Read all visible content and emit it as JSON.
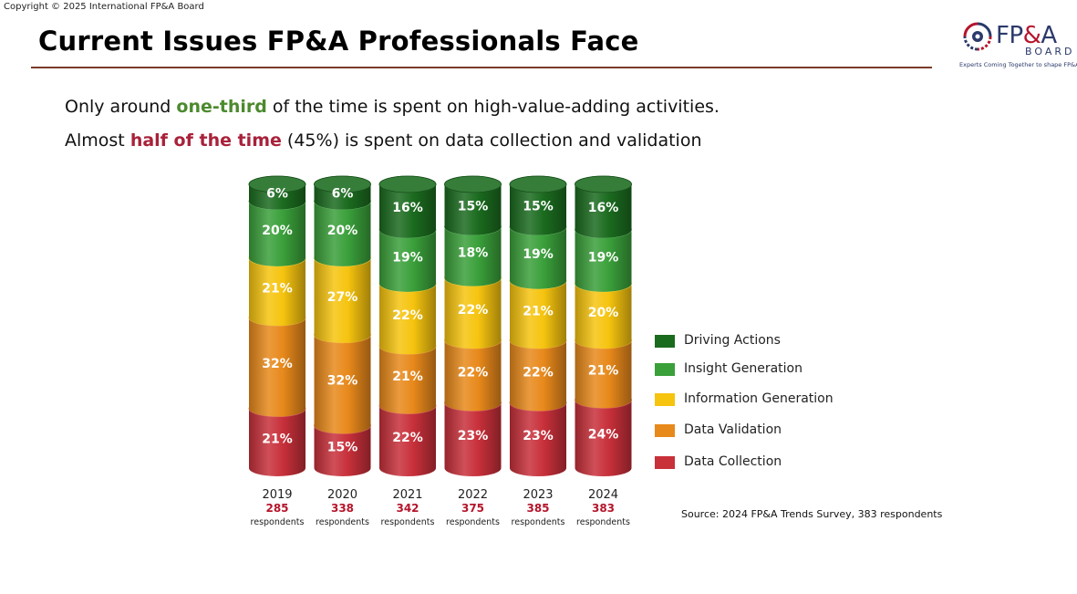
{
  "copyright": "Copyright © 2025 International FP&A Board",
  "title": "Current Issues FP&A Professionals Face",
  "logo": {
    "text_main": "FP",
    "text_amp": "&",
    "text_end": "A",
    "board": "BOARD",
    "tagline": "Experts Coming Together to shape FP&A Future",
    "colors": {
      "navy": "#2b3a6b",
      "red": "#b5152b"
    }
  },
  "headline1": {
    "pre": "Only around ",
    "highlight": "one-third",
    "post": " of the time is spent on high-value-adding activities."
  },
  "headline2": {
    "pre": "Almost ",
    "highlight": "half of the time",
    "post": " (45%) is spent on data collection and validation"
  },
  "chart_data": {
    "type": "bar",
    "stacked": true,
    "style": "3d-cylinders",
    "categories": [
      "2019",
      "2020",
      "2021",
      "2022",
      "2023",
      "2024"
    ],
    "respondents": [
      "285",
      "338",
      "342",
      "375",
      "385",
      "383"
    ],
    "respondents_label": "respondents",
    "series": [
      {
        "name": "Data Collection",
        "color": "#c8303a",
        "values": [
          21,
          15,
          22,
          23,
          23,
          24
        ]
      },
      {
        "name": "Data Validation",
        "color": "#e8891b",
        "values": [
          32,
          32,
          21,
          22,
          22,
          21
        ]
      },
      {
        "name": "Information Generation",
        "color": "#f6c40f",
        "values": [
          21,
          27,
          22,
          22,
          21,
          20
        ]
      },
      {
        "name": "Insight Generation",
        "color": "#3aa03a",
        "values": [
          20,
          20,
          19,
          18,
          19,
          19
        ]
      },
      {
        "name": "Driving Actions",
        "color": "#1b6b1f",
        "values": [
          6,
          6,
          16,
          15,
          15,
          16
        ]
      }
    ],
    "value_suffix": "%",
    "legend_position": "right",
    "legend_order": [
      "Driving Actions",
      "Insight Generation",
      "Information Generation",
      "Data Validation",
      "Data Collection"
    ]
  },
  "source": "Source: 2024 FP&A Trends Survey, 383 respondents",
  "colors": {
    "year_count": "#b5152b",
    "title_rule": "#7a3b27"
  }
}
